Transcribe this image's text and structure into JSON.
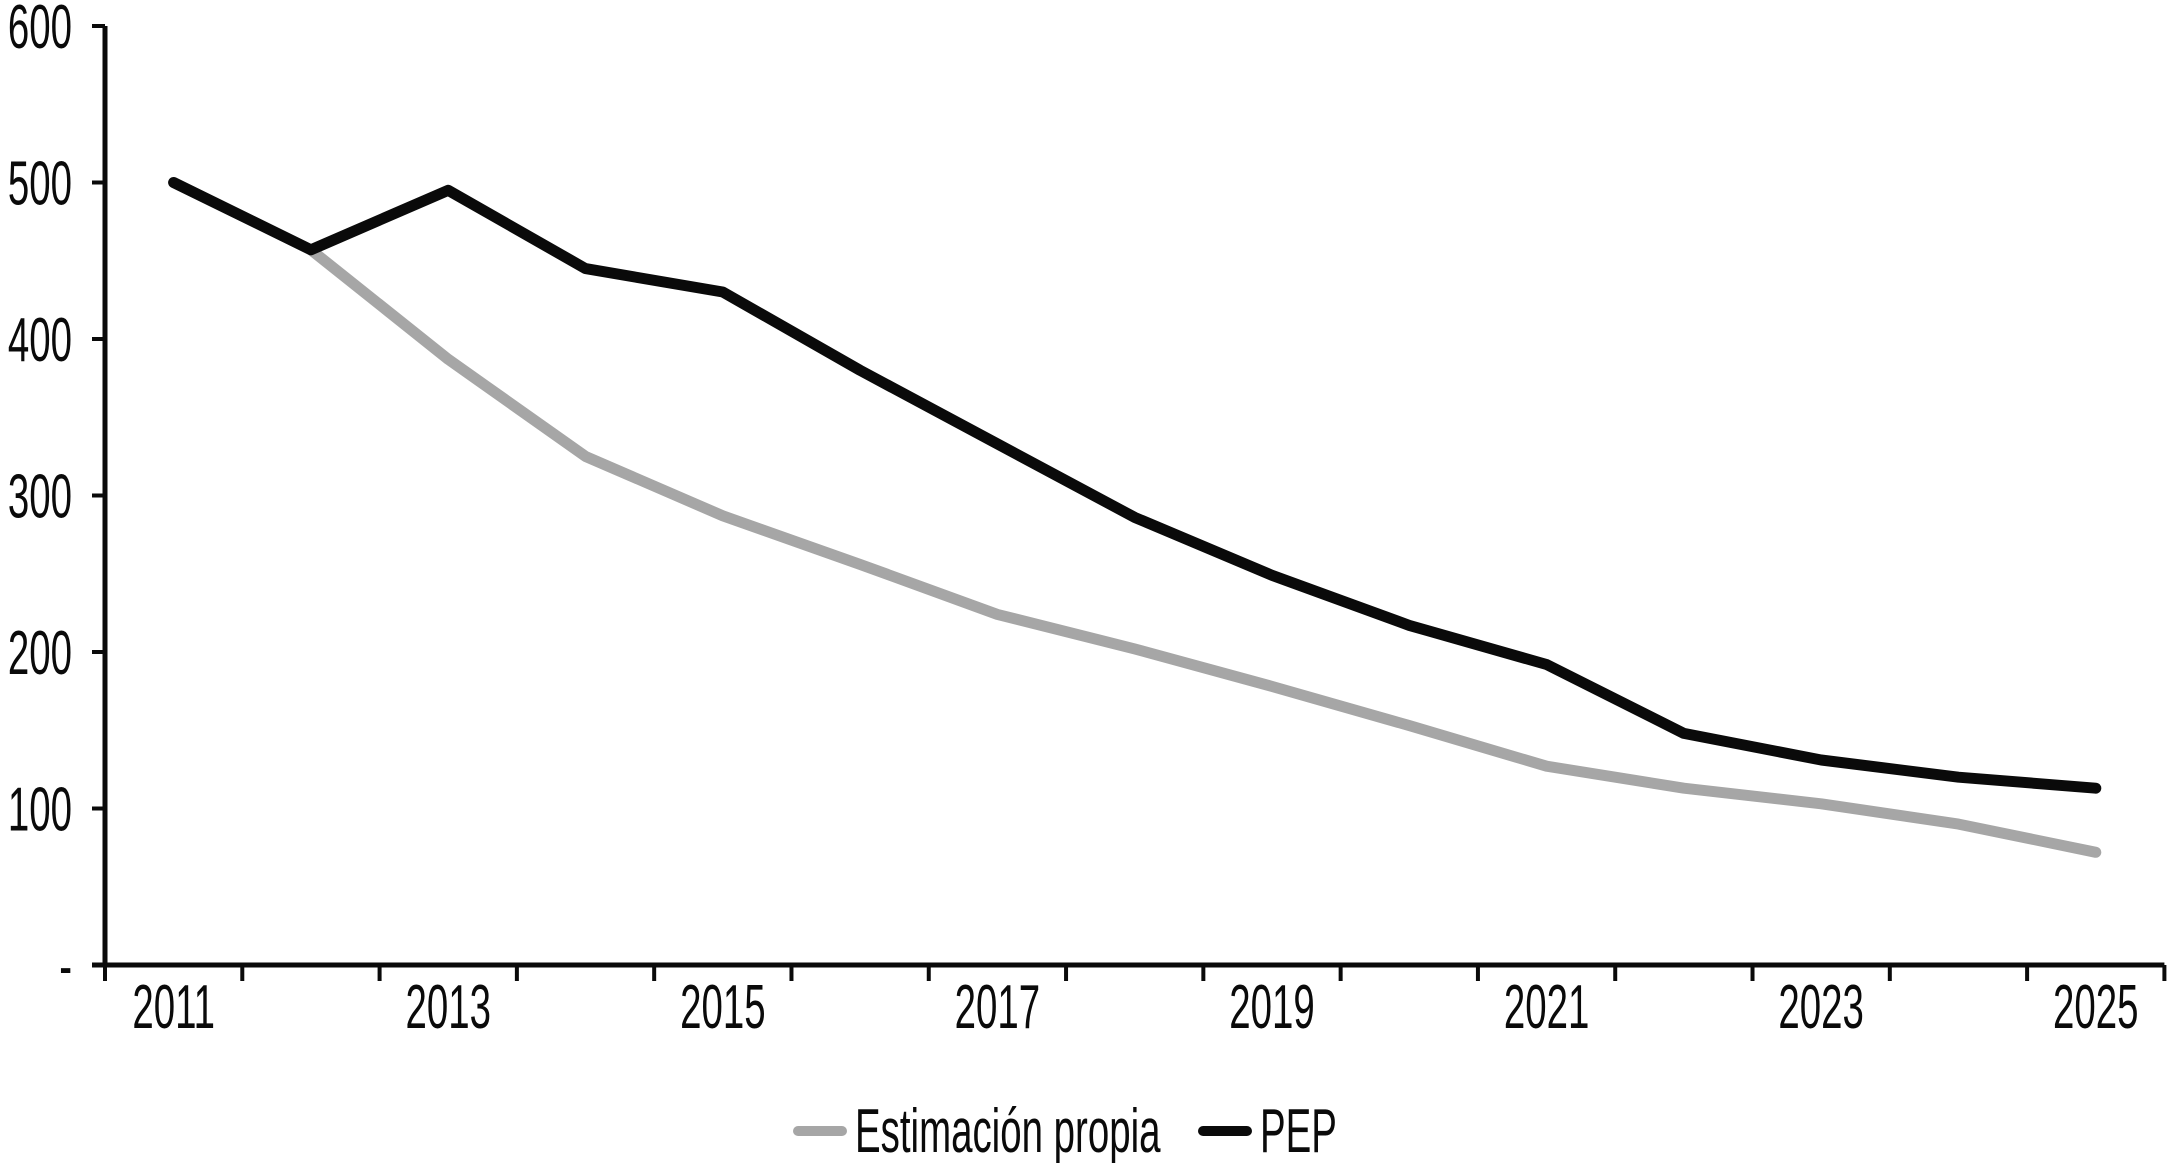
{
  "chart_data": {
    "type": "line",
    "title": "",
    "xlabel": "",
    "ylabel": "",
    "x": [
      2011,
      2012,
      2013,
      2014,
      2015,
      2016,
      2017,
      2018,
      2019,
      2020,
      2021,
      2022,
      2023,
      2024,
      2025
    ],
    "x_tick_labels": [
      "2011",
      "2013",
      "2015",
      "2017",
      "2019",
      "2021",
      "2023",
      "2025"
    ],
    "x_tick_years": [
      2011,
      2013,
      2015,
      2017,
      2019,
      2021,
      2023,
      2025
    ],
    "y_ticks": [
      600,
      500,
      400,
      300,
      200,
      100,
      0
    ],
    "y_tick_labels": [
      "600",
      "500",
      "400",
      "300",
      "200",
      "100",
      "-"
    ],
    "ylim": [
      0,
      600
    ],
    "grid": false,
    "legend_position": "bottom-center",
    "background_color": "#ffffff",
    "axis_color": "#0a0a0a",
    "series": [
      {
        "name": "Estimación propia",
        "color": "#a6a6a6",
        "values": [
          null,
          457,
          387,
          325,
          287,
          256,
          224,
          202,
          178,
          153,
          127,
          113,
          103,
          90,
          72
        ]
      },
      {
        "name": "PEP",
        "color": "#0a0a0a",
        "values": [
          500,
          457,
          495,
          445,
          430,
          380,
          333,
          286,
          249,
          217,
          192,
          148,
          131,
          120,
          113
        ]
      }
    ]
  }
}
